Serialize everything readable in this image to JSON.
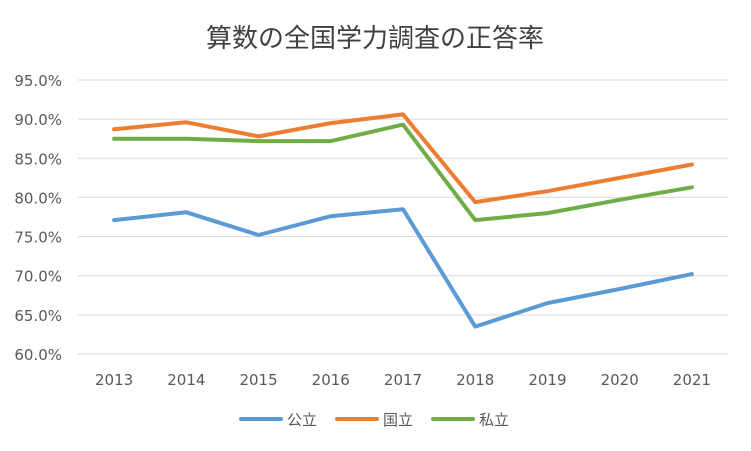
{
  "chart_data": {
    "type": "line",
    "title": "算数の全国学力調査の正答率",
    "xlabel": "",
    "ylabel": "",
    "categories": [
      "2013",
      "2014",
      "2015",
      "2016",
      "2017",
      "2018",
      "2019",
      "2020",
      "2021"
    ],
    "ylim": [
      0.6,
      0.95
    ],
    "yticks": [
      "95.0%",
      "90.0%",
      "85.0%",
      "80.0%",
      "75.0%",
      "70.0%",
      "65.0%",
      "60.0%"
    ],
    "ytick_values": [
      0.95,
      0.9,
      0.85,
      0.8,
      0.75,
      0.7,
      0.65,
      0.6
    ],
    "grid": true,
    "legend_position": "bottom",
    "series": [
      {
        "name": "公立",
        "color": "#5B9BD5",
        "values": [
          0.771,
          0.781,
          0.752,
          0.776,
          0.785,
          0.635,
          0.665,
          0.683,
          0.702
        ]
      },
      {
        "name": "国立",
        "color": "#ED7D31",
        "values": [
          0.887,
          0.896,
          0.878,
          0.895,
          0.906,
          0.794,
          0.808,
          0.825,
          0.842
        ]
      },
      {
        "name": "私立",
        "color": "#70AD47",
        "values": [
          0.875,
          0.875,
          0.872,
          0.872,
          0.893,
          0.771,
          0.78,
          0.797,
          0.813
        ]
      }
    ]
  }
}
